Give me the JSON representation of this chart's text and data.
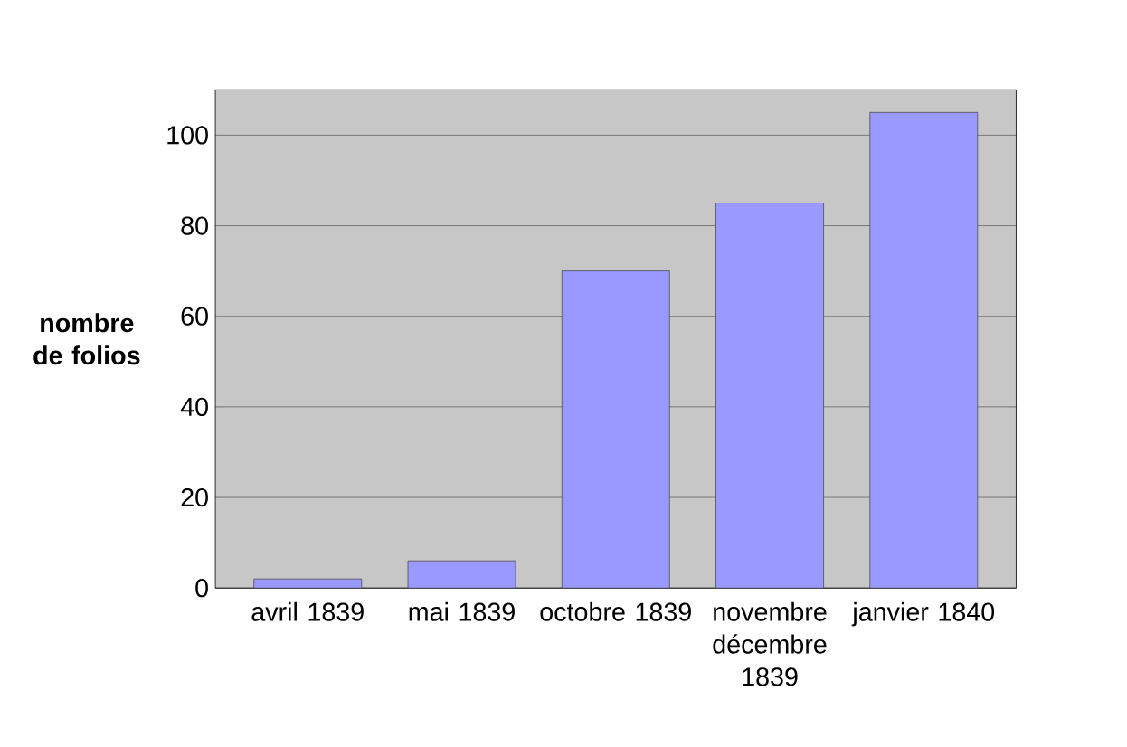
{
  "chart_data": {
    "type": "bar",
    "ylabel": "nombre de folios",
    "categories": [
      "avril 1839",
      "mai 1839",
      "octobre 1839",
      "novembre décembre 1839",
      "janvier 1840"
    ],
    "values": [
      2,
      6,
      70,
      85,
      105
    ],
    "color": "#9999ff",
    "ylim": [
      0,
      110
    ],
    "yticks": [
      0,
      20,
      40,
      60,
      80,
      100
    ],
    "grid": "y"
  }
}
